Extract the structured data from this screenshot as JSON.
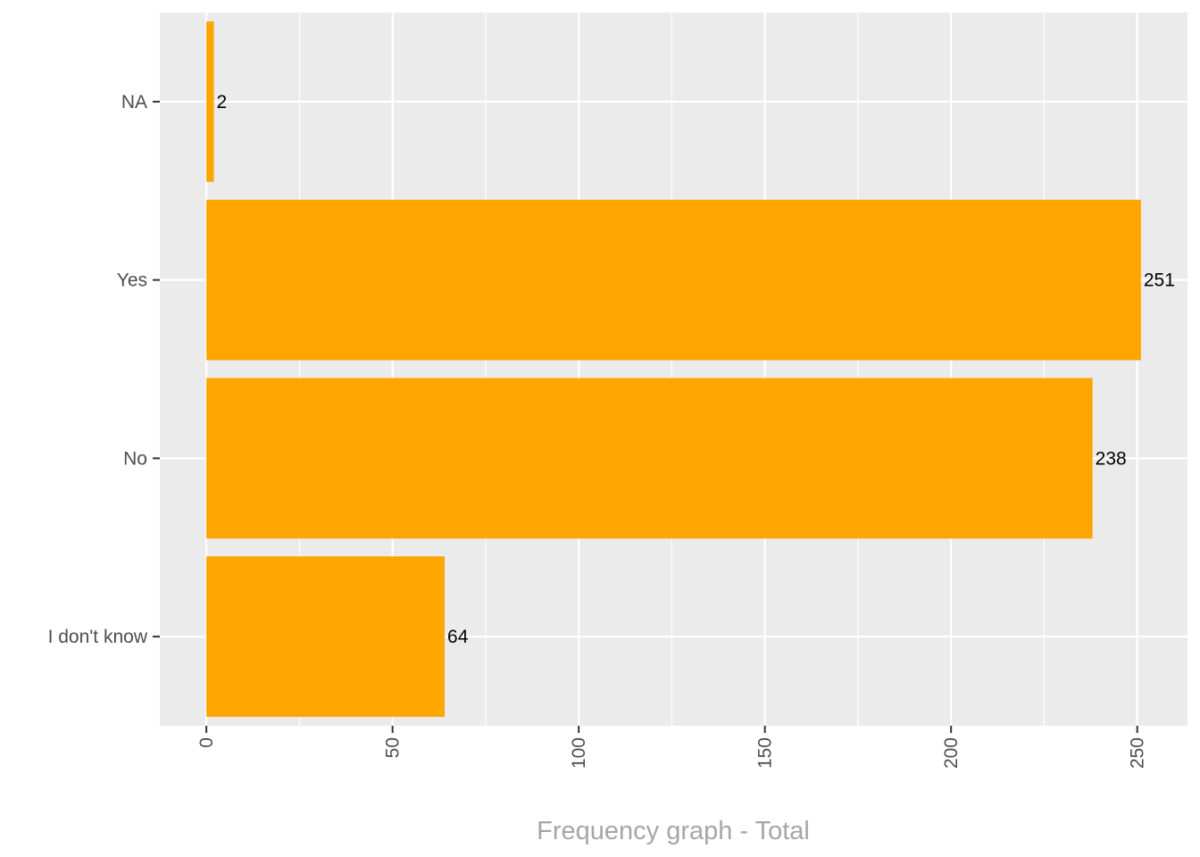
{
  "chart_data": {
    "type": "bar",
    "orientation": "horizontal",
    "categories": [
      "I don't know",
      "No",
      "Yes",
      "NA"
    ],
    "values": [
      64,
      238,
      251,
      2
    ],
    "data_labels": [
      "64",
      "238",
      "251",
      "2"
    ],
    "xlabel": "Frequency graph - Total",
    "ylabel": "",
    "xlim": [
      -12.5,
      263.5
    ],
    "x_ticks": [
      0,
      50,
      100,
      150,
      200,
      250
    ],
    "x_tick_labels": [
      "0",
      "50",
      "100",
      "150",
      "200",
      "250"
    ],
    "x_tick_rotation": "vertical",
    "grid": true,
    "legend": "none",
    "colors": {
      "bar": "#FFA500",
      "panel_background": "#EBEBEB",
      "grid": "#FFFFFF",
      "tick_text": "#4D4D4D",
      "axis_title": "#A6A6A6",
      "data_label": "#000000"
    }
  }
}
